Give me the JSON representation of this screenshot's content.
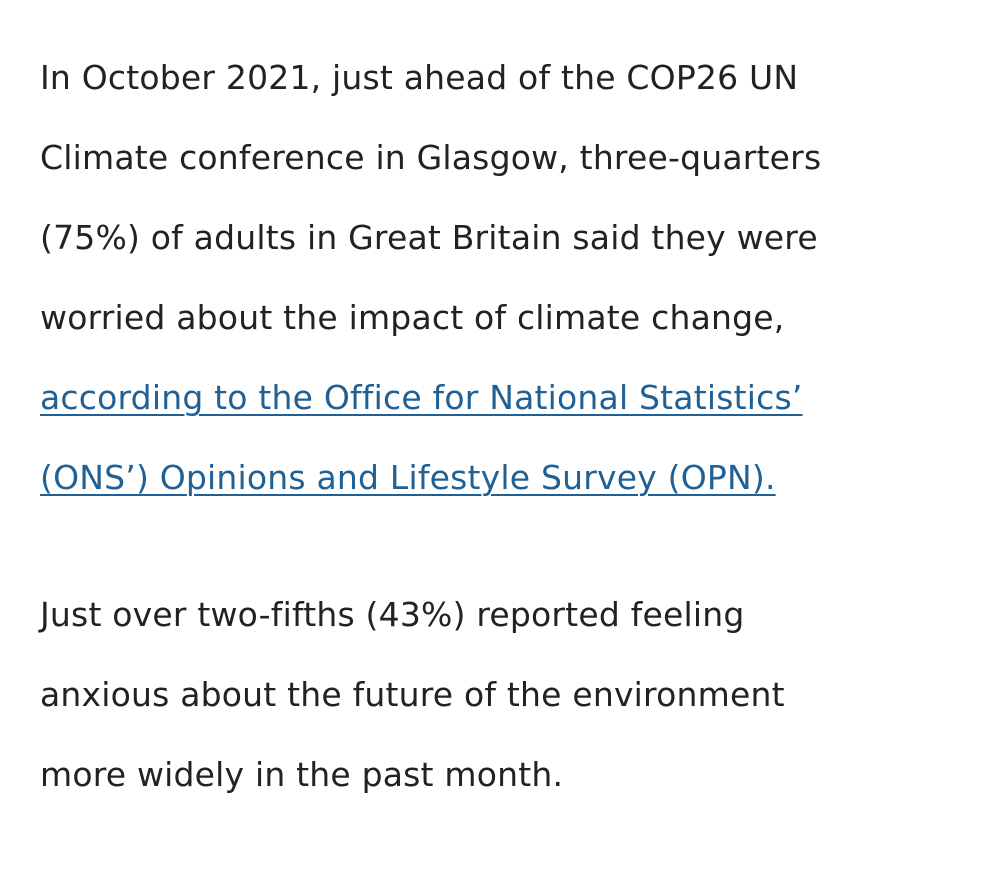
{
  "paragraph1": {
    "lines": [
      "In October 2021, just ahead of the COP26 UN",
      "Climate conference in Glasgow, three-quarters",
      "(75%) of adults in Great Britain said they were",
      "worried about the impact of climate change,"
    ],
    "link_lines": [
      "according to the Office for National Statistics’",
      "(ONS’) Opinions and Lifestyle Survey (OPN)."
    ]
  },
  "paragraph2": {
    "lines": [
      "Just over two-fifths (43%) reported feeling",
      "anxious about the future of the environment",
      "more widely in the past month."
    ]
  },
  "colors": {
    "text": "#222222",
    "link": "#206095"
  }
}
